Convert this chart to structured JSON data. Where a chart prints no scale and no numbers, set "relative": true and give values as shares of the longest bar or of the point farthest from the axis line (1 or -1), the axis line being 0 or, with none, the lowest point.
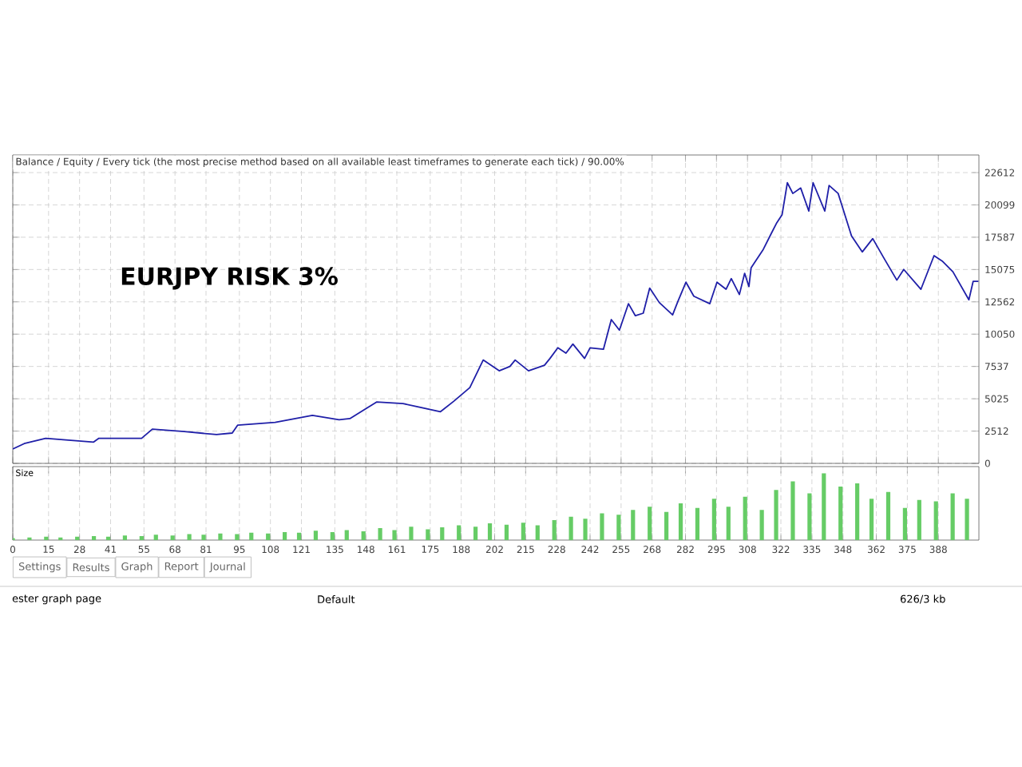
{
  "chart_data": [
    {
      "type": "line",
      "title": "EURJPY RISK 3%",
      "subtitle": "Balance / Equity / Every tick (the most precise method based on all available least timeframes to generate each tick) / 90.00%",
      "x": [
        0,
        4.8,
        13.8,
        33.9,
        36.1,
        54,
        58.5,
        71.9,
        85.4,
        92,
        94.3,
        110,
        125.6,
        136.8,
        141.3,
        152.5,
        163.6,
        179.3,
        184.9,
        191.6,
        197.2,
        203.9,
        208.4,
        210.6,
        216.2,
        222.9,
        225.2,
        228.5,
        231.9,
        234.8,
        239.7,
        242,
        247.6,
        250.9,
        254.3,
        258.1,
        261,
        264.3,
        267,
        271,
        276.6,
        278.8,
        282.2,
        285.5,
        292.2,
        295.2,
        299,
        301.2,
        304.6,
        306.8,
        308.6,
        309.5,
        314.6,
        318,
        320.3,
        322.5,
        324.7,
        327,
        330.3,
        333.7,
        335.5,
        340.4,
        342.2,
        346,
        351.6,
        356.1,
        360.5,
        365,
        370.6,
        373.5,
        380.7,
        386.2,
        389.6,
        394.1,
        400.8,
        402.6,
        404.8
      ],
      "series": [
        {
          "color": "#1f1fa8",
          "values": [
            1120,
            1540,
            1950,
            1660,
            1950,
            1950,
            2660,
            2480,
            2240,
            2360,
            2980,
            3190,
            3730,
            3400,
            3480,
            4770,
            4650,
            4020,
            4840,
            5890,
            8040,
            7200,
            7540,
            8040,
            7200,
            7630,
            8160,
            8990,
            8570,
            9280,
            8160,
            8990,
            8870,
            11180,
            10360,
            12420,
            11480,
            11680,
            13630,
            12510,
            11550,
            12590,
            14090,
            13000,
            12420,
            14090,
            13540,
            14370,
            13130,
            14780,
            13750,
            15200,
            16640,
            17890,
            18720,
            19340,
            21820,
            20990,
            21410,
            19620,
            21820,
            19620,
            21610,
            20990,
            17690,
            16440,
            17480,
            16020,
            14250,
            15080,
            13540,
            16150,
            15740,
            14900,
            12720,
            14160,
            14160
          ]
        }
      ],
      "xlim": [
        0,
        405
      ],
      "ylim": [
        0,
        23980
      ],
      "xticks": [
        0,
        15,
        28,
        41,
        55,
        68,
        81,
        95,
        108,
        121,
        135,
        148,
        161,
        175,
        188,
        202,
        215,
        228,
        242,
        255,
        268,
        282,
        295,
        308,
        322,
        335,
        348,
        362,
        375,
        388
      ],
      "yticks": [
        0,
        2512,
        5025,
        7537,
        10050,
        12562,
        15075,
        17587,
        20099,
        22612
      ],
      "grid": true,
      "tick_labels": "y"
    },
    {
      "type": "bar",
      "title": "Size",
      "relative": true,
      "color": "#66cc66",
      "x": [
        0,
        7,
        14,
        20,
        27,
        34,
        40,
        47,
        54,
        60,
        67,
        74,
        80,
        87,
        94,
        100,
        107,
        114,
        120,
        127,
        134,
        140,
        147,
        154,
        160,
        167,
        174,
        180,
        187,
        194,
        200,
        207,
        214,
        220,
        227,
        234,
        240,
        247,
        254,
        260,
        267,
        274,
        280,
        287,
        294,
        300,
        307,
        314,
        320,
        327,
        334,
        340,
        347,
        354,
        360,
        367,
        374,
        380,
        387,
        394,
        400
      ],
      "values": [
        0.03,
        0.04,
        0.05,
        0.04,
        0.05,
        0.06,
        0.05,
        0.07,
        0.06,
        0.08,
        0.07,
        0.09,
        0.08,
        0.1,
        0.09,
        0.11,
        0.1,
        0.12,
        0.11,
        0.14,
        0.12,
        0.15,
        0.13,
        0.18,
        0.15,
        0.2,
        0.16,
        0.19,
        0.22,
        0.2,
        0.25,
        0.23,
        0.26,
        0.22,
        0.3,
        0.35,
        0.32,
        0.4,
        0.38,
        0.45,
        0.5,
        0.42,
        0.55,
        0.48,
        0.62,
        0.5,
        0.65,
        0.45,
        0.75,
        0.88,
        0.7,
        1,
        0.8,
        0.85,
        0.62,
        0.72,
        0.48,
        0.6,
        0.58,
        0.7,
        0.62
      ],
      "xlim": [
        0,
        405
      ],
      "xticks": [
        0,
        15,
        28,
        41,
        55,
        68,
        81,
        95,
        108,
        121,
        135,
        148,
        161,
        175,
        188,
        202,
        215,
        228,
        242,
        255,
        268,
        282,
        295,
        308,
        322,
        335,
        348,
        362,
        375,
        388
      ],
      "grid": "x",
      "tick_labels": "x",
      "annotations": [
        "Settings",
        "Results",
        "Graph",
        "Report",
        "Journal",
        "ester graph page",
        "Default",
        "626/3 kb"
      ]
    }
  ]
}
